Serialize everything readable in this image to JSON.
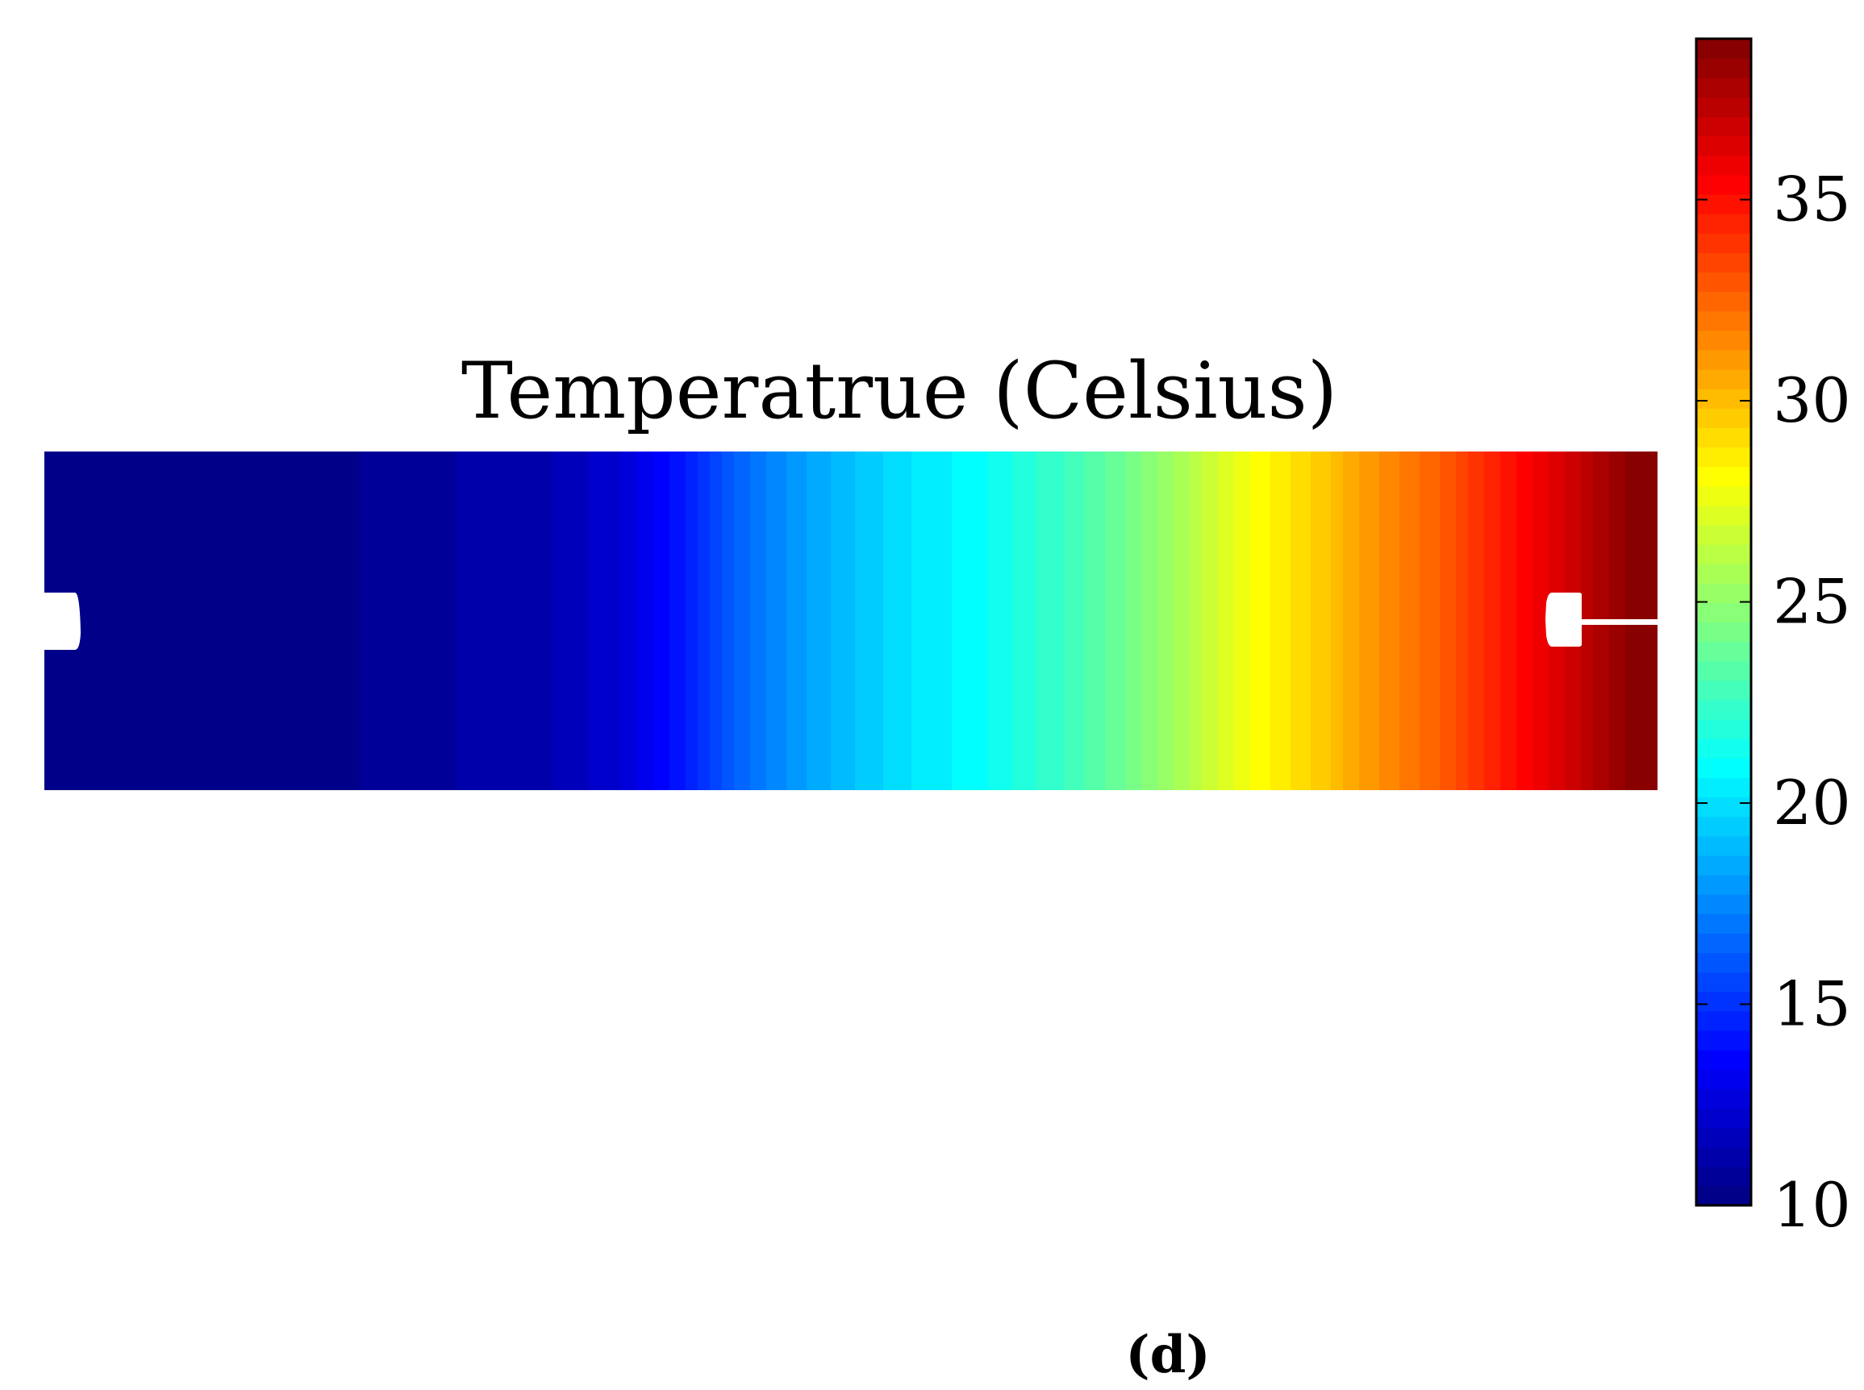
{
  "figure": {
    "panel_label": "(d)"
  },
  "chart_data": {
    "type": "heatmap",
    "title": "Temperatrue (Celsius)",
    "colormap": "jet",
    "colorbar": {
      "range": [
        10,
        39
      ],
      "ticks": [
        10,
        15,
        20,
        25,
        30,
        35
      ],
      "tick_labels": [
        "10",
        "15",
        "20",
        "25",
        "30",
        "35"
      ],
      "levels": 60
    },
    "field": {
      "x_fraction": [
        0.0,
        0.06,
        0.2,
        0.32,
        0.36,
        0.4,
        0.44,
        0.48,
        0.53,
        0.58,
        0.63,
        0.67,
        0.71,
        0.75,
        0.79,
        0.82,
        0.86,
        0.89,
        0.92,
        0.95,
        0.98,
        1.0
      ],
      "temperature": [
        10.0,
        10.1,
        10.5,
        11.5,
        12.5,
        14.5,
        17.0,
        18.5,
        20.0,
        21.0,
        22.5,
        24.0,
        26.0,
        28.0,
        29.5,
        31.0,
        32.5,
        34.0,
        35.5,
        37.0,
        38.5,
        39.0
      ]
    },
    "grid": false,
    "legend": "colorbar-right"
  }
}
